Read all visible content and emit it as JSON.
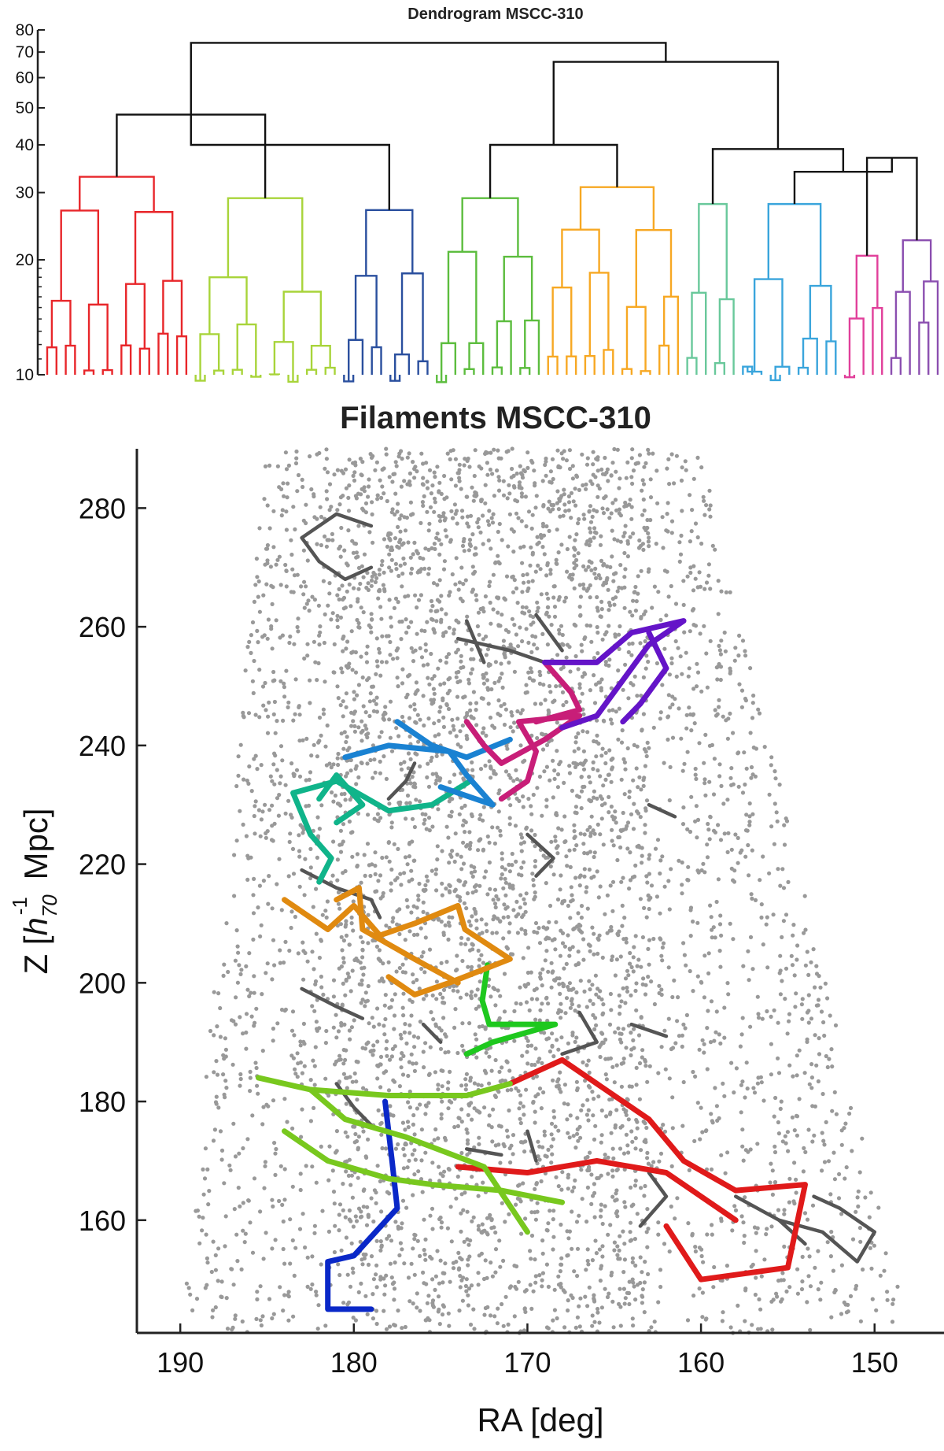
{
  "chart_data": [
    {
      "type": "dendrogram",
      "title": "Dendrogram MSCC-310",
      "y_ticks": [
        "10",
        "20",
        "30",
        "40",
        "50",
        "60",
        "70",
        "80"
      ],
      "y_tick_values": [
        10,
        20,
        30,
        40,
        50,
        60,
        70,
        80
      ],
      "ylim": [
        10,
        80
      ],
      "yscale": "log",
      "clusters": [
        {
          "color": "#e8262a",
          "leaves": 16,
          "root_height": 33
        },
        {
          "color": "#a8d43a",
          "leaves": 16,
          "root_height": 29
        },
        {
          "color": "#2a4f9e",
          "leaves": 10,
          "root_height": 27
        },
        {
          "color": "#5cbd3e",
          "leaves": 12,
          "root_height": 29
        },
        {
          "color": "#f7a823",
          "leaves": 15,
          "root_height": 31
        },
        {
          "color": "#69c89b",
          "leaves": 6,
          "root_height": 28
        },
        {
          "color": "#3aa5dc",
          "leaves": 11,
          "root_height": 28
        },
        {
          "color": "#e13f9a",
          "leaves": 5,
          "root_height": 20.5
        },
        {
          "color": "#8b4fb0",
          "leaves": 6,
          "root_height": 22.5
        }
      ],
      "upper_links": [
        {
          "children": [
            0,
            1
          ],
          "height": 48
        },
        {
          "children": [
            1,
            2
          ],
          "height": 40
        },
        {
          "children": [
            3,
            4
          ],
          "height": 40
        },
        {
          "children": [
            7,
            8
          ],
          "height": 37
        },
        {
          "children": [
            6,
            7
          ],
          "height": 34
        },
        {
          "children": [
            5,
            6
          ],
          "height": 39
        },
        {
          "children": [
            3,
            5
          ],
          "height": 66
        },
        {
          "children": [
            0,
            3
          ],
          "height": 74
        }
      ],
      "link_color": "#111111"
    },
    {
      "type": "scatter",
      "title": "Filaments MSCC-310",
      "xlabel": "RA [deg]",
      "ylabel_main": "Z  [",
      "ylabel_h": "h",
      "ylabel_sub": "70",
      "ylabel_sup": "-1",
      "ylabel_unit": " Mpc]",
      "x_ticks": [
        "190",
        "180",
        "170",
        "160",
        "150"
      ],
      "x_tick_values": [
        190,
        180,
        170,
        160,
        150
      ],
      "y_ticks": [
        "160",
        "180",
        "200",
        "220",
        "240",
        "260",
        "280"
      ],
      "y_tick_values": [
        160,
        180,
        200,
        220,
        240,
        260,
        280
      ],
      "xlim": [
        192.5,
        146
      ],
      "ylim": [
        141,
        290
      ],
      "x_reversed": true,
      "point_color": "#999999",
      "gray_filament_color": "#555555",
      "filaments": [
        {
          "color": "#e01a1a",
          "points": [
            [
              171,
              183
            ],
            [
              168,
              187
            ],
            [
              163,
              177
            ],
            [
              161,
              170
            ],
            [
              158,
              165
            ],
            [
              154,
              166
            ],
            [
              155,
              152
            ],
            [
              160,
              150
            ],
            [
              162,
              159
            ]
          ]
        },
        {
          "color": "#e01a1a",
          "points": [
            [
              174,
              169
            ],
            [
              170,
              168
            ],
            [
              166,
              170
            ],
            [
              162,
              168
            ],
            [
              158,
              160
            ]
          ]
        },
        {
          "color": "#0a28c8",
          "points": [
            [
              178.2,
              180
            ],
            [
              177.8,
              170
            ],
            [
              177.5,
              162
            ],
            [
              180,
              154
            ],
            [
              181.5,
              153
            ],
            [
              181.5,
              145
            ],
            [
              179,
              145
            ]
          ]
        },
        {
          "color": "#78c81e",
          "points": [
            [
              185.5,
              184
            ],
            [
              182.5,
              182
            ],
            [
              178,
              181
            ],
            [
              173.5,
              181
            ],
            [
              171,
              183
            ]
          ]
        },
        {
          "color": "#78c81e",
          "points": [
            [
              184,
              175
            ],
            [
              181.5,
              170
            ],
            [
              178,
              167
            ],
            [
              175.5,
              166
            ],
            [
              171.5,
              165
            ],
            [
              168,
              163
            ]
          ]
        },
        {
          "color": "#78c81e",
          "points": [
            [
              182.5,
              182
            ],
            [
              180.5,
              177
            ],
            [
              177,
              174
            ],
            [
              172.5,
              169
            ],
            [
              170,
              158
            ]
          ]
        },
        {
          "color": "#1ec81e",
          "points": [
            [
              172.3,
              203
            ],
            [
              172.6,
              197
            ],
            [
              172.2,
              193
            ],
            [
              168.4,
              193
            ],
            [
              172,
              190
            ],
            [
              173.5,
              188
            ]
          ]
        },
        {
          "color": "#e08a10",
          "points": [
            [
              184,
              214
            ],
            [
              181.5,
              209
            ],
            [
              180,
              213
            ],
            [
              178.5,
              208
            ],
            [
              176.5,
              210
            ],
            [
              174,
              213
            ],
            [
              173.6,
              209
            ],
            [
              171,
              204
            ],
            [
              174.5,
              200
            ],
            [
              176.5,
              198
            ],
            [
              178,
              201
            ]
          ]
        },
        {
          "color": "#e08a10",
          "points": [
            [
              181,
              214
            ],
            [
              179.7,
              216
            ],
            [
              179.5,
              209
            ],
            [
              176.5,
              204
            ],
            [
              174,
              200
            ]
          ]
        },
        {
          "color": "#10b48a",
          "points": [
            [
              182,
              217
            ],
            [
              181.3,
              221
            ],
            [
              182.5,
              225
            ],
            [
              183.5,
              232
            ],
            [
              181,
              234
            ],
            [
              178,
              229
            ],
            [
              175.5,
              230
            ],
            [
              173.3,
              234
            ]
          ]
        },
        {
          "color": "#10b48a",
          "points": [
            [
              181,
              227
            ],
            [
              179.5,
              230
            ],
            [
              181,
              235
            ],
            [
              182,
              231
            ]
          ]
        },
        {
          "color": "#1a82d2",
          "points": [
            [
              180.5,
              238
            ],
            [
              178,
              240
            ],
            [
              174.5,
              239
            ],
            [
              173.5,
              235
            ],
            [
              172,
              230
            ],
            [
              175,
              233
            ]
          ]
        },
        {
          "color": "#1a82d2",
          "points": [
            [
              177.5,
              244
            ],
            [
              175.5,
              240
            ],
            [
              173.5,
              238
            ],
            [
              171,
              241
            ]
          ]
        },
        {
          "color": "#c81e78",
          "points": [
            [
              173.5,
              244
            ],
            [
              172.5,
              240
            ],
            [
              171.5,
              237
            ],
            [
              169,
              241
            ],
            [
              167,
              245
            ],
            [
              170.5,
              244
            ],
            [
              169.5,
              239
            ],
            [
              170,
              234
            ],
            [
              171.5,
              231
            ]
          ]
        },
        {
          "color": "#c81e78",
          "points": [
            [
              169.5,
              244
            ],
            [
              167,
              246
            ],
            [
              167.5,
              249
            ],
            [
              169,
              254
            ]
          ]
        },
        {
          "color": "#6414c8",
          "points": [
            [
              169,
              254
            ],
            [
              166,
              254
            ],
            [
              164,
              259
            ],
            [
              161,
              261
            ],
            [
              163,
              257
            ],
            [
              164.5,
              251
            ],
            [
              166,
              245
            ],
            [
              168,
              243
            ]
          ]
        },
        {
          "color": "#6414c8",
          "points": [
            [
              163,
              259
            ],
            [
              162,
              253
            ],
            [
              163.5,
              247
            ],
            [
              164.5,
              244
            ]
          ]
        }
      ],
      "gray_filaments": [
        [
          [
            179,
            277
          ],
          [
            181,
            279
          ],
          [
            183,
            275
          ],
          [
            182,
            271
          ],
          [
            180.5,
            268
          ],
          [
            179,
            270
          ]
        ],
        [
          [
            174,
            258
          ],
          [
            171,
            256
          ],
          [
            169,
            254
          ]
        ],
        [
          [
            173.5,
            261
          ],
          [
            172.5,
            254
          ]
        ],
        [
          [
            169.5,
            262
          ],
          [
            168,
            256
          ]
        ],
        [
          [
            168,
            243
          ],
          [
            166,
            245
          ]
        ],
        [
          [
            183,
            219
          ],
          [
            181,
            216
          ],
          [
            179,
            214
          ],
          [
            178.5,
            211
          ]
        ],
        [
          [
            178,
            231
          ],
          [
            177,
            234
          ],
          [
            176.5,
            237
          ]
        ],
        [
          [
            170,
            225
          ],
          [
            168.5,
            221
          ],
          [
            169.5,
            218
          ]
        ],
        [
          [
            163,
            230
          ],
          [
            161.5,
            228
          ]
        ],
        [
          [
            183,
            199
          ],
          [
            181,
            196
          ],
          [
            179.5,
            194
          ]
        ],
        [
          [
            176,
            193
          ],
          [
            175,
            190
          ]
        ],
        [
          [
            164,
            193
          ],
          [
            162,
            191
          ]
        ],
        [
          [
            167,
            195
          ],
          [
            166,
            190
          ],
          [
            168,
            188
          ]
        ],
        [
          [
            181,
            183
          ],
          [
            180,
            179
          ],
          [
            179,
            176
          ]
        ],
        [
          [
            170,
            175
          ],
          [
            169.5,
            170
          ]
        ],
        [
          [
            173.5,
            172
          ],
          [
            171.5,
            171
          ]
        ],
        [
          [
            158,
            164
          ],
          [
            155.5,
            160
          ],
          [
            153,
            158
          ],
          [
            151,
            153
          ],
          [
            150,
            158
          ],
          [
            152,
            162
          ],
          [
            153.5,
            164
          ]
        ],
        [
          [
            155.5,
            160
          ],
          [
            154,
            156
          ]
        ],
        [
          [
            163,
            168
          ],
          [
            162,
            164
          ],
          [
            163.5,
            159
          ]
        ]
      ]
    }
  ]
}
